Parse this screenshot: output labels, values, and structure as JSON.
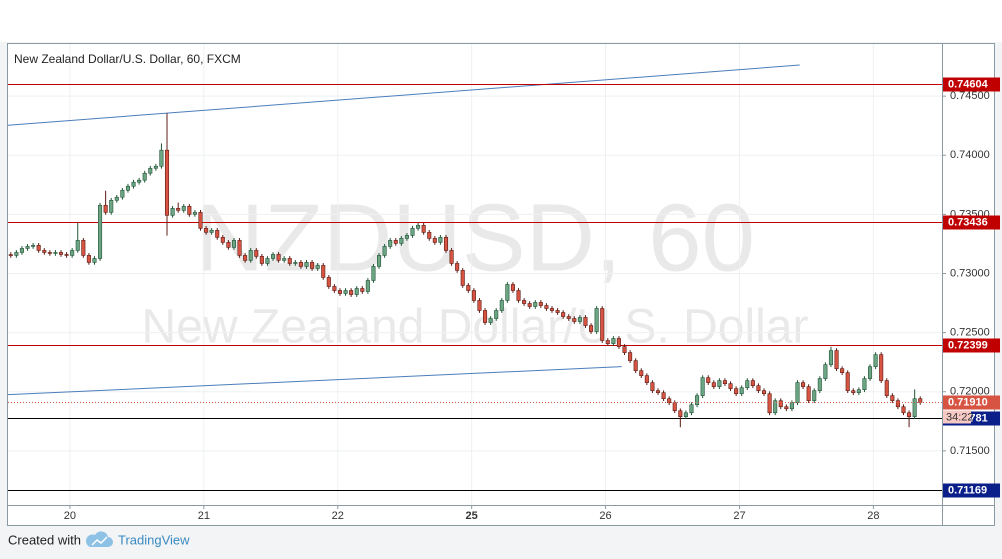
{
  "chart_data": {
    "type": "candlestick",
    "title": "New Zealand Dollar/U.S. Dollar, 60, FXCM",
    "watermark": {
      "symbol": "NZDUSD, 60",
      "description": "New Zealand Dollar/U.S. Dollar"
    },
    "up_color": "#6ba583",
    "down_color": "#d75442",
    "xlim": [
      -0.5,
      166.9
    ],
    "xticks": [
      {
        "value": 10.6,
        "label": "20"
      },
      {
        "value": 34.6,
        "label": "21"
      },
      {
        "value": 58.6,
        "label": "22"
      },
      {
        "value": 82.6,
        "label": "25",
        "bold": true
      },
      {
        "value": 106.6,
        "label": "26"
      },
      {
        "value": 130.6,
        "label": "27"
      },
      {
        "value": 154.6,
        "label": "28"
      }
    ],
    "ylim": [
      0.71042,
      0.74941
    ],
    "yticks": [
      {
        "value": 0.715,
        "label": "0.71500"
      },
      {
        "value": 0.72,
        "label": "0.72000"
      },
      {
        "value": 0.725,
        "label": "0.72500"
      },
      {
        "value": 0.73,
        "label": "0.73000"
      },
      {
        "value": 0.735,
        "label": "0.73500"
      },
      {
        "value": 0.74,
        "label": "0.74000"
      },
      {
        "value": 0.745,
        "label": "0.74500"
      }
    ],
    "grid": true,
    "levels": [
      {
        "value": 0.74604,
        "color": "#c00000",
        "label_color": "#c00000"
      },
      {
        "value": 0.73436,
        "color": "#c00000",
        "label_color": "#c00000"
      },
      {
        "value": 0.72399,
        "color": "#c00000",
        "label_color": "#c00000"
      },
      {
        "value": 0.71781,
        "color": "#000000",
        "label_color": "#0b1f8a"
      },
      {
        "value": 0.71169,
        "color": "#000000",
        "label_color": "#0b1f8a"
      }
    ],
    "last_price": {
      "value": 0.7191,
      "label": "0.71910",
      "color": "#d75442",
      "countdown": "34:22"
    },
    "trendlines": [
      {
        "x": [
          -0.5,
          141.4
        ],
        "y": [
          0.74254,
          0.74763
        ],
        "color": "#4a7ebb"
      },
      {
        "x": [
          -0.5,
          109.5
        ],
        "y": [
          0.71975,
          0.72212
        ],
        "color": "#4a7ebb"
      }
    ],
    "open": [
      0.7316,
      0.73153,
      0.73178,
      0.73212,
      0.73229,
      0.73238,
      0.73195,
      0.73178,
      0.7317,
      0.73178,
      0.73161,
      0.73153,
      0.73195,
      0.7328,
      0.73153,
      0.73094,
      0.73127,
      0.73577,
      0.73517,
      0.73619,
      0.73645,
      0.73704,
      0.73738,
      0.73772,
      0.73789,
      0.73848,
      0.7389,
      0.73907,
      0.74043,
      0.73492,
      0.73551,
      0.73534,
      0.73568,
      0.735,
      0.73517,
      0.73382,
      0.73348,
      0.73365,
      0.73306,
      0.73263,
      0.73221,
      0.7328,
      0.73153,
      0.73111,
      0.73195,
      0.73145,
      0.73085,
      0.73127,
      0.73161,
      0.73111,
      0.73127,
      0.73085,
      0.73094,
      0.7306,
      0.73094,
      0.73043,
      0.73068,
      0.72967,
      0.7289,
      0.72856,
      0.72831,
      0.72856,
      0.72822,
      0.72873,
      0.72848,
      0.72941,
      0.7306,
      0.73153,
      0.73229,
      0.7328,
      0.73255,
      0.73297,
      0.73322,
      0.73382,
      0.73407,
      0.73348,
      0.73297,
      0.73263,
      0.73306,
      0.73195,
      0.73085,
      0.73026,
      0.72899,
      0.72856,
      0.72772,
      0.72687,
      0.72585,
      0.72619,
      0.72687,
      0.72772,
      0.72907,
      0.72856,
      0.72772,
      0.72746,
      0.72721,
      0.72755,
      0.72729,
      0.72704,
      0.72687,
      0.7267,
      0.72636,
      0.72619,
      0.72594,
      0.72628,
      0.7256,
      0.72509,
      0.72704,
      0.72433,
      0.72407,
      0.7245,
      0.72382,
      0.72331,
      0.72263,
      0.72178,
      0.72136,
      0.72077,
      0.72009,
      0.71992,
      0.71941,
      0.71907,
      0.71839,
      0.71789,
      0.71822,
      0.7189,
      0.71967,
      0.72119,
      0.72077,
      0.72043,
      0.72094,
      0.72068,
      0.72026,
      0.71983,
      0.72034,
      0.72094,
      0.72051,
      0.72009,
      0.71983,
      0.71822,
      0.71924,
      0.71873,
      0.71856,
      0.71907,
      0.72077,
      0.72043,
      0.71924,
      0.72009,
      0.72111,
      0.72229,
      0.72348,
      0.72195,
      0.72161,
      0.72009,
      0.71992,
      0.72017,
      0.72111,
      0.72212,
      0.72314,
      0.72094,
      0.71967,
      0.71924,
      0.71873,
      0.71822,
      0.71789,
      0.71941
    ],
    "high": [
      0.7318,
      0.73198,
      0.73232,
      0.73249,
      0.73258,
      0.73258,
      0.73215,
      0.73198,
      0.73198,
      0.73198,
      0.73181,
      0.73215,
      0.7343,
      0.733,
      0.73173,
      0.73147,
      0.73597,
      0.737,
      0.73639,
      0.73665,
      0.73724,
      0.73758,
      0.73792,
      0.73809,
      0.73868,
      0.7391,
      0.73927,
      0.741,
      0.74356,
      0.73571,
      0.736,
      0.73588,
      0.73588,
      0.73537,
      0.73537,
      0.73402,
      0.73385,
      0.73385,
      0.73326,
      0.73283,
      0.733,
      0.733,
      0.73173,
      0.73215,
      0.73215,
      0.73165,
      0.73147,
      0.73181,
      0.73181,
      0.73147,
      0.73147,
      0.73114,
      0.73114,
      0.73114,
      0.73114,
      0.73088,
      0.73088,
      0.72987,
      0.7291,
      0.72876,
      0.72876,
      0.72876,
      0.72893,
      0.72893,
      0.72961,
      0.7308,
      0.73173,
      0.73249,
      0.733,
      0.733,
      0.73317,
      0.73342,
      0.73402,
      0.73427,
      0.73427,
      0.73368,
      0.73317,
      0.73326,
      0.73326,
      0.73215,
      0.73105,
      0.73046,
      0.72919,
      0.72876,
      0.72792,
      0.72707,
      0.72639,
      0.72707,
      0.72792,
      0.72927,
      0.72927,
      0.72876,
      0.72792,
      0.72766,
      0.72775,
      0.72775,
      0.72749,
      0.72724,
      0.72707,
      0.7269,
      0.72656,
      0.72639,
      0.72648,
      0.72648,
      0.7258,
      0.72724,
      0.72724,
      0.72453,
      0.7247,
      0.7247,
      0.72402,
      0.72351,
      0.72283,
      0.72198,
      0.72156,
      0.72097,
      0.72029,
      0.72012,
      0.71961,
      0.71927,
      0.71859,
      0.71842,
      0.7191,
      0.71987,
      0.72139,
      0.72139,
      0.72097,
      0.72114,
      0.72114,
      0.72088,
      0.72046,
      0.72054,
      0.72114,
      0.72114,
      0.72071,
      0.72029,
      0.72003,
      0.71944,
      0.71944,
      0.71893,
      0.71927,
      0.72097,
      0.72097,
      0.72063,
      0.72029,
      0.72131,
      0.72249,
      0.7238,
      0.72368,
      0.72215,
      0.72181,
      0.72029,
      0.72037,
      0.72131,
      0.72232,
      0.72334,
      0.72334,
      0.72114,
      0.71987,
      0.71944,
      0.71893,
      0.71842,
      0.7202,
      0.71961
    ],
    "low": [
      0.73133,
      0.73133,
      0.73158,
      0.73192,
      0.73209,
      0.73175,
      0.73158,
      0.7315,
      0.7315,
      0.73141,
      0.73133,
      0.73133,
      0.73175,
      0.73133,
      0.73074,
      0.73074,
      0.73107,
      0.73497,
      0.73497,
      0.73599,
      0.73625,
      0.73684,
      0.73718,
      0.73752,
      0.73769,
      0.73828,
      0.7387,
      0.73887,
      0.7332,
      0.73472,
      0.73514,
      0.73514,
      0.7348,
      0.7348,
      0.73362,
      0.73328,
      0.73328,
      0.73286,
      0.73243,
      0.73201,
      0.73201,
      0.73133,
      0.73091,
      0.73091,
      0.73125,
      0.73065,
      0.73065,
      0.73107,
      0.73091,
      0.73091,
      0.73065,
      0.73065,
      0.7304,
      0.7304,
      0.73023,
      0.73023,
      0.72947,
      0.7287,
      0.72836,
      0.72811,
      0.72811,
      0.72802,
      0.72802,
      0.72828,
      0.72828,
      0.72921,
      0.7304,
      0.73133,
      0.73209,
      0.73235,
      0.73235,
      0.73277,
      0.73302,
      0.73362,
      0.73328,
      0.73277,
      0.73243,
      0.73243,
      0.73175,
      0.73065,
      0.73006,
      0.72879,
      0.72836,
      0.72752,
      0.72667,
      0.72565,
      0.72565,
      0.72599,
      0.72667,
      0.72752,
      0.72836,
      0.72752,
      0.72726,
      0.72701,
      0.72701,
      0.72709,
      0.72684,
      0.72667,
      0.7265,
      0.72616,
      0.72599,
      0.72574,
      0.72574,
      0.7254,
      0.72489,
      0.72489,
      0.72413,
      0.72387,
      0.72387,
      0.72362,
      0.72311,
      0.72243,
      0.72158,
      0.72116,
      0.72057,
      0.71989,
      0.71972,
      0.71921,
      0.71887,
      0.71819,
      0.717,
      0.71769,
      0.71802,
      0.7187,
      0.71947,
      0.72057,
      0.72023,
      0.72023,
      0.72048,
      0.72006,
      0.71963,
      0.71963,
      0.72014,
      0.72031,
      0.71989,
      0.71963,
      0.71802,
      0.71802,
      0.71853,
      0.71836,
      0.71836,
      0.71887,
      0.72023,
      0.71904,
      0.71904,
      0.71989,
      0.72091,
      0.72209,
      0.72175,
      0.72141,
      0.71989,
      0.71972,
      0.71972,
      0.71997,
      0.72091,
      0.72192,
      0.72074,
      0.71947,
      0.71904,
      0.71853,
      0.71802,
      0.717,
      0.71769,
      0.7189
    ],
    "close": [
      0.73153,
      0.73178,
      0.73212,
      0.73229,
      0.73238,
      0.73195,
      0.73178,
      0.7317,
      0.73178,
      0.73161,
      0.73153,
      0.73195,
      0.7328,
      0.73153,
      0.73094,
      0.73127,
      0.73577,
      0.73517,
      0.73619,
      0.73645,
      0.73704,
      0.73738,
      0.73772,
      0.73789,
      0.73848,
      0.7389,
      0.73907,
      0.74043,
      0.73492,
      0.73551,
      0.73534,
      0.73568,
      0.735,
      0.73517,
      0.73382,
      0.73348,
      0.73365,
      0.73306,
      0.73263,
      0.73221,
      0.7328,
      0.73153,
      0.73111,
      0.73195,
      0.73145,
      0.73085,
      0.73127,
      0.73161,
      0.73111,
      0.73127,
      0.73085,
      0.73094,
      0.7306,
      0.73094,
      0.73043,
      0.73068,
      0.72967,
      0.7289,
      0.72856,
      0.72831,
      0.72856,
      0.72822,
      0.72873,
      0.72848,
      0.72941,
      0.7306,
      0.73153,
      0.73229,
      0.7328,
      0.73255,
      0.73297,
      0.73322,
      0.73382,
      0.73407,
      0.73348,
      0.73297,
      0.73263,
      0.73306,
      0.73195,
      0.73085,
      0.73026,
      0.72899,
      0.72856,
      0.72772,
      0.72687,
      0.72585,
      0.72619,
      0.72687,
      0.72772,
      0.72907,
      0.72856,
      0.72772,
      0.72746,
      0.72721,
      0.72755,
      0.72729,
      0.72704,
      0.72687,
      0.7267,
      0.72636,
      0.72619,
      0.72594,
      0.72628,
      0.7256,
      0.72509,
      0.72704,
      0.72433,
      0.72407,
      0.7245,
      0.72382,
      0.72331,
      0.72263,
      0.72178,
      0.72136,
      0.72077,
      0.72009,
      0.71992,
      0.71941,
      0.71907,
      0.71839,
      0.71789,
      0.71822,
      0.7189,
      0.71967,
      0.72119,
      0.72077,
      0.72043,
      0.72094,
      0.72068,
      0.72026,
      0.71983,
      0.72034,
      0.72094,
      0.72051,
      0.72009,
      0.71983,
      0.71822,
      0.71924,
      0.71873,
      0.71856,
      0.71907,
      0.72077,
      0.72043,
      0.71924,
      0.72009,
      0.72111,
      0.72229,
      0.72348,
      0.72195,
      0.72161,
      0.72009,
      0.71992,
      0.72017,
      0.72111,
      0.72212,
      0.72314,
      0.72094,
      0.71967,
      0.71924,
      0.71873,
      0.71822,
      0.71789,
      0.71941,
      0.7191
    ]
  },
  "footer": {
    "prefix": "Created with",
    "brand": "TradingView"
  }
}
